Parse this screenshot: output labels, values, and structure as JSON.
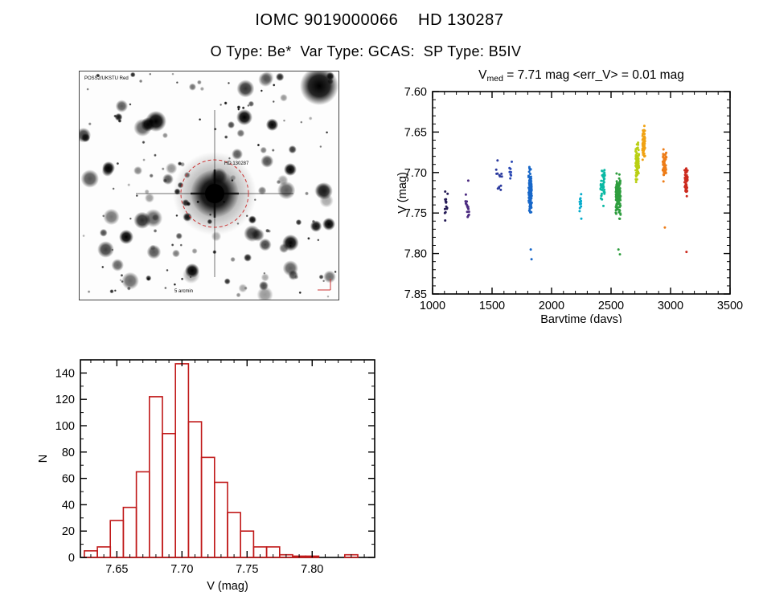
{
  "header": {
    "title": "IOMC 9019000066    HD 130287",
    "subtitle": "O Type: Be*  Var Type: GCAS:  SP Type: B5IV"
  },
  "finding_chart": {
    "annotation_color": "#cc3333",
    "labels": {
      "top_left": "POSS2/UKSTU Red",
      "center": "HD 130287",
      "bottom": "5 arcmin"
    }
  },
  "chart_data": [
    {
      "type": "scatter",
      "title": {
        "prefix": "V",
        "sub": "med",
        "rest": "= 7.71 mag <err_V> = 0.01 mag"
      },
      "xlabel": "Barytime (days)",
      "ylabel": "V (mag)",
      "xlim": [
        1000,
        3500
      ],
      "ylim_top": 7.6,
      "ylim_bottom": 7.85,
      "xticks": [
        1000,
        1500,
        2000,
        2500,
        3000,
        3500
      ],
      "yticks": [
        7.6,
        7.65,
        7.7,
        7.75,
        7.8,
        7.85
      ],
      "axis_color": "#000000",
      "legend": "points colored by observing epoch (violet = early, red = late)",
      "clusters": [
        {
          "x": 1115,
          "x_spread": 12,
          "n": 14,
          "y_center": 7.742,
          "y_spread": 0.026,
          "color": "#241a55"
        },
        {
          "x": 1295,
          "x_spread": 18,
          "n": 16,
          "y_center": 7.746,
          "y_spread": 0.03,
          "color": "#4b2a80"
        },
        {
          "x": 1560,
          "x_spread": 26,
          "n": 13,
          "y_center": 7.705,
          "y_spread": 0.028,
          "color": "#2b3a9e"
        },
        {
          "x": 1655,
          "x_spread": 12,
          "n": 8,
          "y_center": 7.7,
          "y_spread": 0.02,
          "color": "#2b49b5"
        },
        {
          "x": 1820,
          "x_spread": 13,
          "n": 110,
          "y_center": 7.723,
          "y_spread": 0.038,
          "color": "#1767c9"
        },
        {
          "x": 2245,
          "x_spread": 12,
          "n": 11,
          "y_center": 7.738,
          "y_spread": 0.02,
          "color": "#06accc"
        },
        {
          "x": 2430,
          "x_spread": 18,
          "n": 42,
          "y_center": 7.713,
          "y_spread": 0.034,
          "color": "#0bb9a4"
        },
        {
          "x": 2560,
          "x_spread": 20,
          "n": 115,
          "y_center": 7.728,
          "y_spread": 0.04,
          "color": "#2f9e3f"
        },
        {
          "x": 2720,
          "x_spread": 14,
          "n": 85,
          "y_center": 7.686,
          "y_spread": 0.032,
          "color": "#b9cf12"
        },
        {
          "x": 2775,
          "x_spread": 11,
          "n": 55,
          "y_center": 7.664,
          "y_spread": 0.026,
          "color": "#f0a212"
        },
        {
          "x": 2950,
          "x_spread": 15,
          "n": 55,
          "y_center": 7.69,
          "y_spread": 0.028,
          "color": "#ed7d18"
        },
        {
          "x": 3130,
          "x_spread": 13,
          "n": 45,
          "y_center": 7.708,
          "y_spread": 0.032,
          "color": "#cc2a1e"
        }
      ],
      "extra_points": [
        {
          "x": 1825,
          "y": 7.795,
          "color": "#1767c9"
        },
        {
          "x": 1832,
          "y": 7.807,
          "color": "#1767c9"
        },
        {
          "x": 2562,
          "y": 7.795,
          "color": "#2f9e3f"
        },
        {
          "x": 2574,
          "y": 7.801,
          "color": "#2f9e3f"
        },
        {
          "x": 2952,
          "y": 7.768,
          "color": "#ed7d18"
        },
        {
          "x": 3134,
          "y": 7.798,
          "color": "#cc2a1e"
        },
        {
          "x": 1300,
          "y": 7.71,
          "color": "#4b2a80"
        },
        {
          "x": 2250,
          "y": 7.757,
          "color": "#06accc"
        }
      ]
    },
    {
      "type": "bar",
      "xlabel": "V (mag)",
      "ylabel": "N",
      "bar_color": "#c01818",
      "axis_color": "#000000",
      "bin_start": 7.625,
      "bin_width": 0.01,
      "values": [
        5,
        8,
        28,
        38,
        65,
        122,
        94,
        147,
        103,
        76,
        57,
        34,
        20,
        8,
        8,
        2,
        1,
        1,
        0,
        0,
        2
      ],
      "xlim": [
        7.622,
        7.848
      ],
      "ylim": [
        0,
        150
      ],
      "xticks": [
        7.65,
        7.7,
        7.75,
        7.8
      ],
      "yticks": [
        0,
        20,
        40,
        60,
        80,
        100,
        120,
        140
      ]
    }
  ]
}
